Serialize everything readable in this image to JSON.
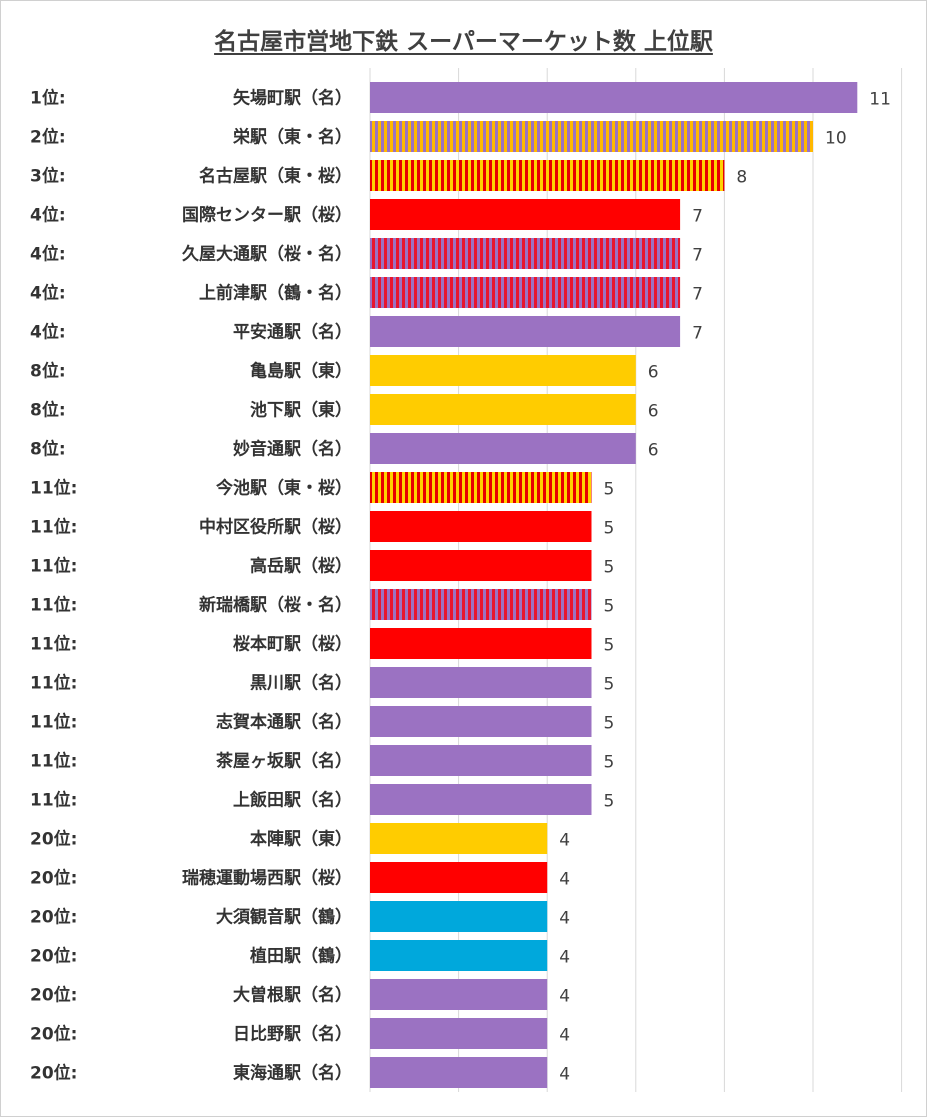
{
  "chart_data": {
    "type": "bar",
    "orientation": "horizontal",
    "title": "名古屋市営地下鉄 スーパーマーケット数 上位駅",
    "xlim": [
      0,
      12
    ],
    "grid": true,
    "legend": "none",
    "colors": {
      "higashiyama": "#FFCC00",
      "sakuradori": "#FF0000",
      "meijo": "#9B72C2",
      "tsurumai": "#00A8DC",
      "higashiyama_meijo": [
        "#FFB800",
        "#9B72C2"
      ],
      "higashiyama_sakuradori": [
        "#FFD200",
        "#E80000"
      ],
      "sakuradori_meijo": [
        "#E8152E",
        "#9B72C2"
      ],
      "tsurumai_meijo": [
        "#E8152E",
        "#9B72C2"
      ]
    },
    "items": [
      {
        "rank": "1位:",
        "name": "矢場町駅（名）",
        "value": 11,
        "lines": "meijo"
      },
      {
        "rank": "2位:",
        "name": "栄駅（東・名）",
        "value": 10,
        "lines": "higashiyama_meijo"
      },
      {
        "rank": "3位:",
        "name": "名古屋駅（東・桜）",
        "value": 8,
        "lines": "higashiyama_sakuradori"
      },
      {
        "rank": "4位:",
        "name": "国際センター駅（桜）",
        "value": 7,
        "lines": "sakuradori"
      },
      {
        "rank": "4位:",
        "name": "久屋大通駅（桜・名）",
        "value": 7,
        "lines": "sakuradori_meijo"
      },
      {
        "rank": "4位:",
        "name": "上前津駅（鶴・名）",
        "value": 7,
        "lines": "tsurumai_meijo"
      },
      {
        "rank": "4位:",
        "name": "平安通駅（名）",
        "value": 7,
        "lines": "meijo"
      },
      {
        "rank": "8位:",
        "name": "亀島駅（東）",
        "value": 6,
        "lines": "higashiyama"
      },
      {
        "rank": "8位:",
        "name": "池下駅（東）",
        "value": 6,
        "lines": "higashiyama"
      },
      {
        "rank": "8位:",
        "name": "妙音通駅（名）",
        "value": 6,
        "lines": "meijo"
      },
      {
        "rank": "11位:",
        "name": "今池駅（東・桜）",
        "value": 5,
        "lines": "higashiyama_sakuradori"
      },
      {
        "rank": "11位:",
        "name": "中村区役所駅（桜）",
        "value": 5,
        "lines": "sakuradori"
      },
      {
        "rank": "11位:",
        "name": "高岳駅（桜）",
        "value": 5,
        "lines": "sakuradori"
      },
      {
        "rank": "11位:",
        "name": "新瑞橋駅（桜・名）",
        "value": 5,
        "lines": "sakuradori_meijo"
      },
      {
        "rank": "11位:",
        "name": "桜本町駅（桜）",
        "value": 5,
        "lines": "sakuradori"
      },
      {
        "rank": "11位:",
        "name": "黒川駅（名）",
        "value": 5,
        "lines": "meijo"
      },
      {
        "rank": "11位:",
        "name": "志賀本通駅（名）",
        "value": 5,
        "lines": "meijo"
      },
      {
        "rank": "11位:",
        "name": "茶屋ヶ坂駅（名）",
        "value": 5,
        "lines": "meijo"
      },
      {
        "rank": "11位:",
        "name": "上飯田駅（名）",
        "value": 5,
        "lines": "meijo"
      },
      {
        "rank": "20位:",
        "name": "本陣駅（東）",
        "value": 4,
        "lines": "higashiyama"
      },
      {
        "rank": "20位:",
        "name": "瑞穂運動場西駅（桜）",
        "value": 4,
        "lines": "sakuradori"
      },
      {
        "rank": "20位:",
        "name": "大須観音駅（鶴）",
        "value": 4,
        "lines": "tsurumai"
      },
      {
        "rank": "20位:",
        "name": "植田駅（鶴）",
        "value": 4,
        "lines": "tsurumai"
      },
      {
        "rank": "20位:",
        "name": "大曽根駅（名）",
        "value": 4,
        "lines": "meijo"
      },
      {
        "rank": "20位:",
        "name": "日比野駅（名）",
        "value": 4,
        "lines": "meijo"
      },
      {
        "rank": "20位:",
        "name": "東海通駅（名）",
        "value": 4,
        "lines": "meijo"
      }
    ]
  }
}
